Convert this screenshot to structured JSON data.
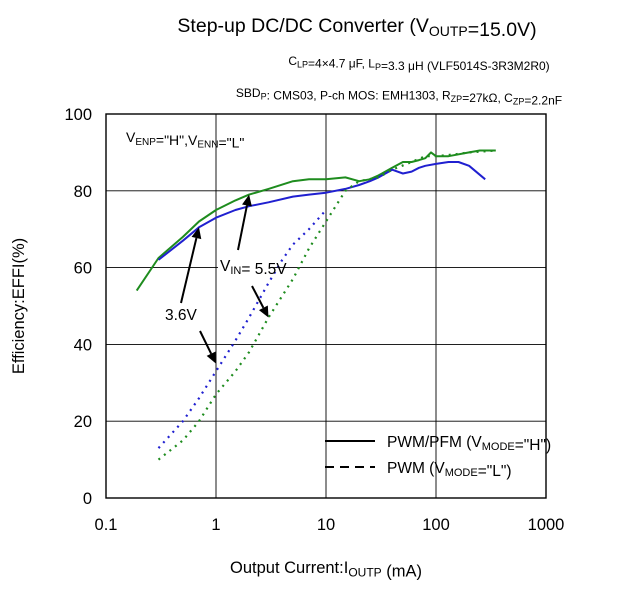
{
  "chart_data": {
    "type": "line",
    "title": {
      "main": "Step-up DC/DC Converter (V",
      "main_sub": "OUTP",
      "main_end": "=15.0V)"
    },
    "subtitle_lines": [
      [
        {
          "t": "C",
          "sub": false
        },
        {
          "t": "LP",
          "sub": true
        },
        {
          "t": "=4×4.7 μF, L",
          "sub": false
        },
        {
          "t": "P",
          "sub": true
        },
        {
          "t": "=3.3 μH (VLF5014S-3R3M2R0)",
          "sub": false
        }
      ],
      [
        {
          "t": "SBD",
          "sub": false
        },
        {
          "t": "P",
          "sub": true
        },
        {
          "t": ": CMS03, P-ch MOS: EMH1303, R",
          "sub": false
        },
        {
          "t": "ZP",
          "sub": true
        },
        {
          "t": "=27kΩ, C",
          "sub": false
        },
        {
          "t": "ZP",
          "sub": true
        },
        {
          "t": "=2.2nF",
          "sub": false
        }
      ]
    ],
    "xlabel": {
      "pre": "Output Current:I",
      "sub": "OUTP",
      "post": " (mA)"
    },
    "ylabel": "Efficiency:EFFI(%)",
    "x_scale": "log",
    "xlim": [
      0.1,
      1000
    ],
    "ylim": [
      0,
      100
    ],
    "x_ticks": [
      0.1,
      1,
      10,
      100,
      1000
    ],
    "x_tick_labels": [
      "0.1",
      "1",
      "10",
      "100",
      "1000"
    ],
    "y_ticks": [
      0,
      20,
      40,
      60,
      80,
      100
    ],
    "y_tick_labels": [
      "0",
      "20",
      "40",
      "60",
      "80",
      "100"
    ],
    "grid": true,
    "condition_label": [
      {
        "t": "V",
        "sub": false
      },
      {
        "t": "ENP",
        "sub": true
      },
      {
        "t": "=\"H\",V",
        "sub": false
      },
      {
        "t": "ENN",
        "sub": true
      },
      {
        "t": "=\"L\"",
        "sub": false
      }
    ],
    "annotations": {
      "vin_high": {
        "pre": "V",
        "sub": "IN",
        "post": "= 5.5V"
      },
      "vin_low": "3.6V"
    },
    "legend": {
      "placement": "bottom-right",
      "entries": [
        {
          "style": "solid",
          "pre": "PWM/PFM (V",
          "sub": "MODE",
          "post": "=\"H\")"
        },
        {
          "style": "dashed",
          "pre": "PWM (V",
          "sub": "MODE",
          "post": "=\"L\")"
        }
      ]
    },
    "colors": {
      "vin_5_5V": "#1e8c1e",
      "vin_3_6V": "#2020d0"
    },
    "series": [
      {
        "vin": "5.5V",
        "mode": "PWM/PFM",
        "style": "solid",
        "color": "#1e8c1e",
        "points": [
          [
            0.19,
            54
          ],
          [
            0.3,
            62.5
          ],
          [
            0.5,
            68
          ],
          [
            0.7,
            72
          ],
          [
            1,
            75
          ],
          [
            1.5,
            77.5
          ],
          [
            2,
            79
          ],
          [
            3,
            80.5
          ],
          [
            5,
            82.5
          ],
          [
            7,
            83
          ],
          [
            10,
            83
          ],
          [
            15,
            83.5
          ],
          [
            20,
            82.5
          ],
          [
            25,
            83
          ],
          [
            30,
            84
          ],
          [
            40,
            86
          ],
          [
            50,
            87.5
          ],
          [
            60,
            87.5
          ],
          [
            70,
            88
          ],
          [
            80,
            88.5
          ],
          [
            90,
            90
          ],
          [
            100,
            89
          ],
          [
            130,
            89
          ],
          [
            200,
            90
          ],
          [
            250,
            90.5
          ],
          [
            350,
            90.5
          ]
        ]
      },
      {
        "vin": "3.6V",
        "mode": "PWM/PFM",
        "style": "solid",
        "color": "#2020d0",
        "points": [
          [
            0.3,
            62
          ],
          [
            0.5,
            67
          ],
          [
            0.7,
            70.5
          ],
          [
            1,
            73
          ],
          [
            1.5,
            75
          ],
          [
            2,
            76
          ],
          [
            3,
            77
          ],
          [
            5,
            78.5
          ],
          [
            7,
            79
          ],
          [
            10,
            79.5
          ],
          [
            15,
            80.5
          ],
          [
            20,
            81.5
          ],
          [
            25,
            82.5
          ],
          [
            30,
            83.5
          ],
          [
            40,
            85.5
          ],
          [
            50,
            84.5
          ],
          [
            60,
            85
          ],
          [
            70,
            86
          ],
          [
            80,
            86.5
          ],
          [
            100,
            87
          ],
          [
            130,
            87.5
          ],
          [
            160,
            87.5
          ],
          [
            200,
            86.5
          ],
          [
            280,
            83
          ]
        ]
      },
      {
        "vin": "5.5V",
        "mode": "PWM",
        "style": "dashed",
        "color": "#1e8c1e",
        "points": [
          [
            0.3,
            10
          ],
          [
            0.5,
            15
          ],
          [
            0.7,
            20
          ],
          [
            1,
            27
          ],
          [
            1.5,
            33
          ],
          [
            2,
            38
          ],
          [
            3,
            47
          ],
          [
            5,
            57
          ],
          [
            7,
            65
          ],
          [
            10,
            72
          ],
          [
            15,
            80
          ],
          [
            20,
            82.5
          ],
          [
            30,
            83.5
          ],
          [
            40,
            85.5
          ],
          [
            60,
            87.5
          ],
          [
            80,
            89
          ],
          [
            100,
            89
          ],
          [
            150,
            89.5
          ],
          [
            200,
            90
          ],
          [
            350,
            90.5
          ]
        ]
      },
      {
        "vin": "3.6V",
        "mode": "PWM",
        "style": "dashed",
        "color": "#2020d0",
        "points": [
          [
            0.3,
            13
          ],
          [
            0.5,
            20
          ],
          [
            0.7,
            26
          ],
          [
            1,
            33
          ],
          [
            1.5,
            41
          ],
          [
            2,
            47
          ],
          [
            3,
            56
          ],
          [
            4,
            62
          ],
          [
            5,
            66
          ],
          [
            7,
            70
          ],
          [
            10,
            75
          ]
        ]
      }
    ]
  }
}
